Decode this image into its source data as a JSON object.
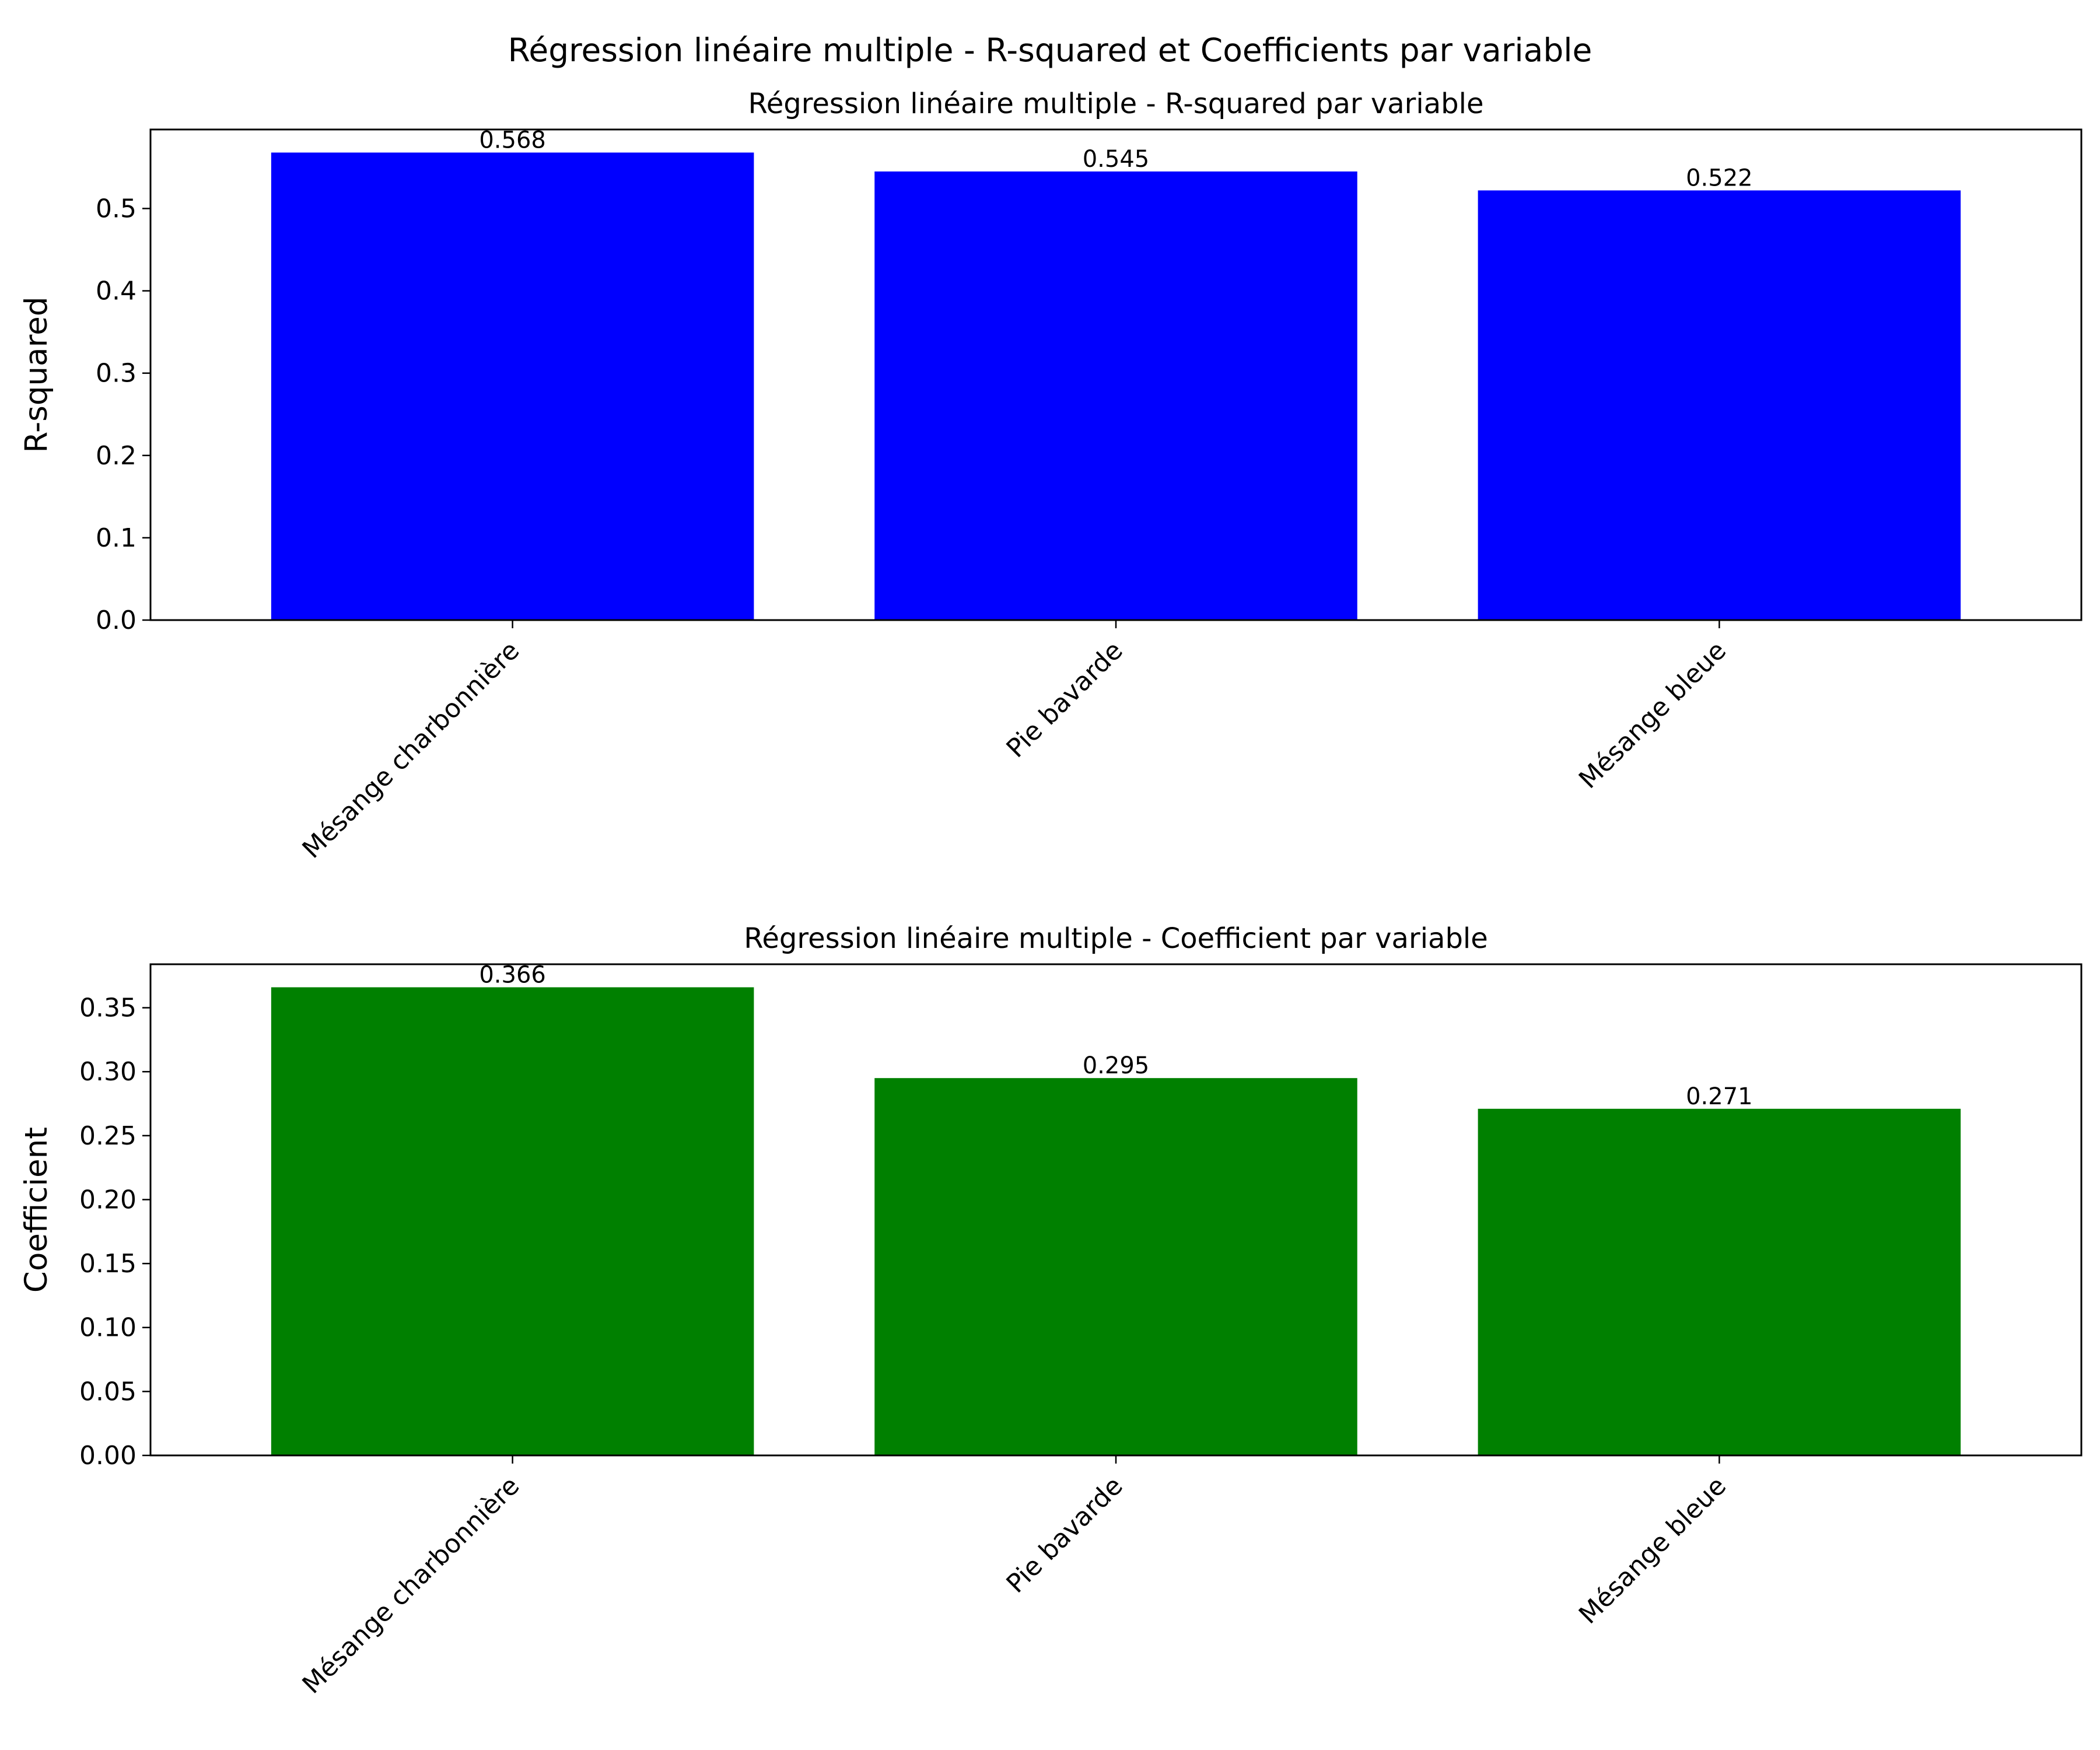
{
  "figure": {
    "suptitle": "Régression linéaire multiple - R-squared et Coefficients par variable"
  },
  "chart_data": [
    {
      "type": "bar",
      "title": "Régression linéaire multiple - R-squared par variable",
      "xlabel": "",
      "ylabel": "R-squared",
      "categories": [
        "Mésange charbonnière",
        "Pie bavarde",
        "Mésange bleue"
      ],
      "values": [
        0.568,
        0.545,
        0.522
      ],
      "value_labels": [
        "0.568",
        "0.545",
        "0.522"
      ],
      "ylim": [
        0,
        0.596
      ],
      "yticks": [
        0.0,
        0.1,
        0.2,
        0.3,
        0.4,
        0.5
      ],
      "ytick_labels": [
        "0.0",
        "0.1",
        "0.2",
        "0.3",
        "0.4",
        "0.5"
      ],
      "color": "#0000ff",
      "grid": false,
      "legend": "none"
    },
    {
      "type": "bar",
      "title": "Régression linéaire multiple - Coefficient par variable",
      "xlabel": "",
      "ylabel": "Coefficient",
      "categories": [
        "Mésange charbonnière",
        "Pie bavarde",
        "Mésange bleue"
      ],
      "values": [
        0.366,
        0.295,
        0.271
      ],
      "value_labels": [
        "0.366",
        "0.295",
        "0.271"
      ],
      "ylim": [
        0,
        0.384
      ],
      "yticks": [
        0.0,
        0.05,
        0.1,
        0.15,
        0.2,
        0.25,
        0.3,
        0.35
      ],
      "ytick_labels": [
        "0.00",
        "0.05",
        "0.10",
        "0.15",
        "0.20",
        "0.25",
        "0.30",
        "0.35"
      ],
      "color": "#008000",
      "grid": false,
      "legend": "none"
    }
  ]
}
